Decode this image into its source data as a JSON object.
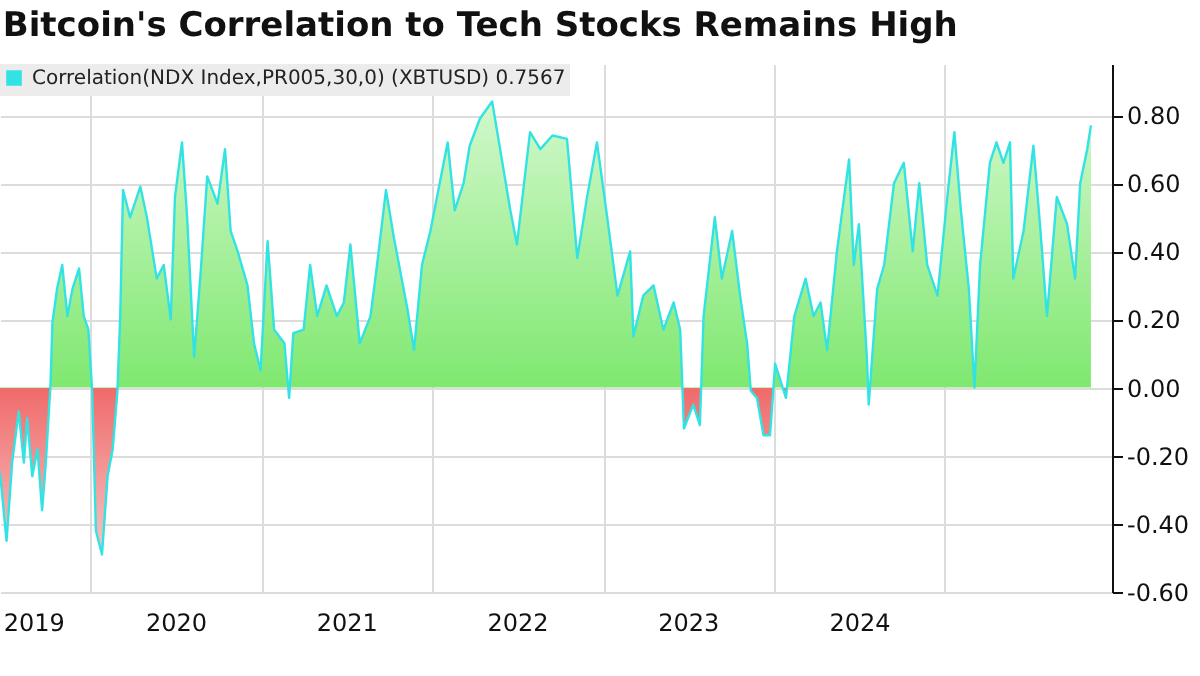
{
  "chart_data": {
    "type": "area",
    "title": "Bitcoin's Correlation to Tech Stocks Remains High",
    "x": [
      "2019-06-22",
      "2019-07-06",
      "2019-07-18",
      "2019-08-01",
      "2019-08-12",
      "2019-08-19",
      "2019-08-30",
      "2019-09-10",
      "2019-09-20",
      "2019-09-28",
      "2019-10-08",
      "2019-10-12",
      "2019-10-22",
      "2019-11-02",
      "2019-11-13",
      "2019-11-24",
      "2019-12-08",
      "2019-12-18",
      "2019-12-28",
      "2020-01-05",
      "2020-01-13",
      "2020-01-26",
      "2020-02-07",
      "2020-02-18",
      "2020-02-28",
      "2020-03-05",
      "2020-03-11",
      "2020-03-26",
      "2020-04-17",
      "2020-05-01",
      "2020-05-22",
      "2020-06-06",
      "2020-06-21",
      "2020-06-30",
      "2020-07-15",
      "2020-07-26",
      "2020-08-10",
      "2020-08-24",
      "2020-09-07",
      "2020-09-29",
      "2020-10-15",
      "2020-10-27",
      "2020-11-11",
      "2020-12-02",
      "2020-12-16",
      "2020-12-30",
      "2021-01-14",
      "2021-01-28",
      "2021-02-19",
      "2021-03-01",
      "2021-03-10",
      "2021-04-01",
      "2021-04-15",
      "2021-04-30",
      "2021-05-20",
      "2021-06-11",
      "2021-06-26",
      "2021-07-10",
      "2021-07-30",
      "2021-08-22",
      "2021-09-05",
      "2021-09-24",
      "2021-10-11",
      "2021-11-09",
      "2021-11-23",
      "2021-12-10",
      "2021-12-28",
      "2022-02-03",
      "2022-02-18",
      "2022-03-09",
      "2022-03-22",
      "2022-04-13",
      "2022-05-09",
      "2022-05-26",
      "2022-06-17",
      "2022-07-01",
      "2022-07-29",
      "2022-08-20",
      "2022-09-15",
      "2022-10-16",
      "2022-11-07",
      "2022-11-28",
      "2022-12-19",
      "2023-01-10",
      "2023-02-01",
      "2023-02-28",
      "2023-03-07",
      "2023-03-28",
      "2023-04-19",
      "2023-05-10",
      "2023-06-01",
      "2023-06-15",
      "2023-06-23",
      "2023-07-13",
      "2023-07-27",
      "2023-08-04",
      "2023-08-28",
      "2023-09-12",
      "2023-10-04",
      "2023-10-21",
      "2023-11-05",
      "2023-11-13",
      "2023-11-26",
      "2023-12-10",
      "2023-12-24",
      "2024-01-04",
      "2024-01-27",
      "2024-02-14",
      "2024-03-09",
      "2024-03-26",
      "2024-04-10",
      "2024-04-24",
      "2024-05-15",
      "2024-06-10",
      "2024-06-20",
      "2024-07-01",
      "2024-07-18",
      "2024-07-22",
      "2024-08-09",
      "2024-08-24",
      "2024-09-14",
      "2024-10-05",
      "2024-10-24",
      "2024-11-07",
      "2024-11-24",
      "2024-12-16",
      "2025-01-06",
      "2025-01-21",
      "2025-02-04",
      "2025-02-21",
      "2025-03-05",
      "2025-03-17",
      "2025-04-07",
      "2025-04-21",
      "2025-05-06",
      "2025-05-20",
      "2025-05-27",
      "2025-06-18",
      "2025-07-09",
      "2025-07-23",
      "2025-08-07",
      "2025-08-28",
      "2025-09-19",
      "2025-10-06",
      "2025-10-17",
      "2025-11-01",
      "2025-11-09"
    ],
    "series": [
      {
        "name": "Correlation(NDX Index,PR005,30,0) (XBTUSD) 0.7567",
        "color": "#33e3e3",
        "values": [
          -0.25,
          -0.45,
          -0.22,
          -0.07,
          -0.22,
          -0.09,
          -0.26,
          -0.18,
          -0.36,
          -0.22,
          0.01,
          0.19,
          0.29,
          0.36,
          0.21,
          0.29,
          0.35,
          0.21,
          0.17,
          -0.01,
          -0.42,
          -0.49,
          -0.26,
          -0.18,
          -0.01,
          0.21,
          0.58,
          0.5,
          0.59,
          0.5,
          0.32,
          0.36,
          0.2,
          0.56,
          0.72,
          0.5,
          0.09,
          0.34,
          0.62,
          0.54,
          0.7,
          0.46,
          0.4,
          0.3,
          0.13,
          0.05,
          0.43,
          0.17,
          0.13,
          -0.03,
          0.16,
          0.17,
          0.36,
          0.21,
          0.3,
          0.21,
          0.25,
          0.42,
          0.13,
          0.21,
          0.36,
          0.58,
          0.44,
          0.23,
          0.11,
          0.36,
          0.46,
          0.72,
          0.52,
          0.6,
          0.71,
          0.79,
          0.84,
          0.7,
          0.52,
          0.42,
          0.75,
          0.7,
          0.74,
          0.73,
          0.38,
          0.56,
          0.72,
          0.5,
          0.27,
          0.4,
          0.15,
          0.27,
          0.3,
          0.17,
          0.25,
          0.17,
          -0.12,
          -0.05,
          -0.11,
          0.21,
          0.5,
          0.32,
          0.46,
          0.27,
          0.13,
          -0.01,
          -0.03,
          -0.14,
          -0.14,
          0.07,
          -0.03,
          0.21,
          0.32,
          0.21,
          0.25,
          0.11,
          0.4,
          0.67,
          0.36,
          0.48,
          0.09,
          -0.05,
          0.29,
          0.36,
          0.6,
          0.66,
          0.4,
          0.6,
          0.36,
          0.27,
          0.56,
          0.75,
          0.52,
          0.29,
          0.0,
          0.36,
          0.66,
          0.72,
          0.66,
          0.72,
          0.32,
          0.46,
          0.71,
          0.48,
          0.21,
          0.56,
          0.48,
          0.32,
          0.6,
          0.7,
          0.77
        ]
      }
    ],
    "xlim": [
      "2019-06-22",
      "2025-12-24"
    ],
    "xticks": [
      {
        "value": "2019-09-01",
        "label": "2019"
      },
      {
        "value": "2020-01-01",
        "label": null
      },
      {
        "value": "2020-07-01",
        "label": "2020"
      },
      {
        "value": "2021-01-01",
        "label": null
      },
      {
        "value": "2021-07-01",
        "label": "2021"
      },
      {
        "value": "2022-01-01",
        "label": null
      },
      {
        "value": "2022-07-01",
        "label": "2022"
      },
      {
        "value": "2023-01-01",
        "label": null
      },
      {
        "value": "2023-07-01",
        "label": "2023"
      },
      {
        "value": "2024-01-01",
        "label": null
      },
      {
        "value": "2024-07-01",
        "label": "2024"
      },
      {
        "value": "2025-01-01",
        "label": null
      }
    ],
    "ylim": [
      -0.6,
      0.95
    ],
    "yticks": [
      {
        "value": -0.6,
        "label": "-0.60"
      },
      {
        "value": -0.4,
        "label": "-0.40"
      },
      {
        "value": -0.2,
        "label": "-0.20"
      },
      {
        "value": 0,
        "label": "0.00"
      },
      {
        "value": 0.2,
        "label": "0.20"
      },
      {
        "value": 0.4,
        "label": "0.40"
      },
      {
        "value": 0.6,
        "label": "0.60"
      },
      {
        "value": 0.8,
        "label": "0.80"
      }
    ],
    "grid": true,
    "legend": "top left"
  }
}
